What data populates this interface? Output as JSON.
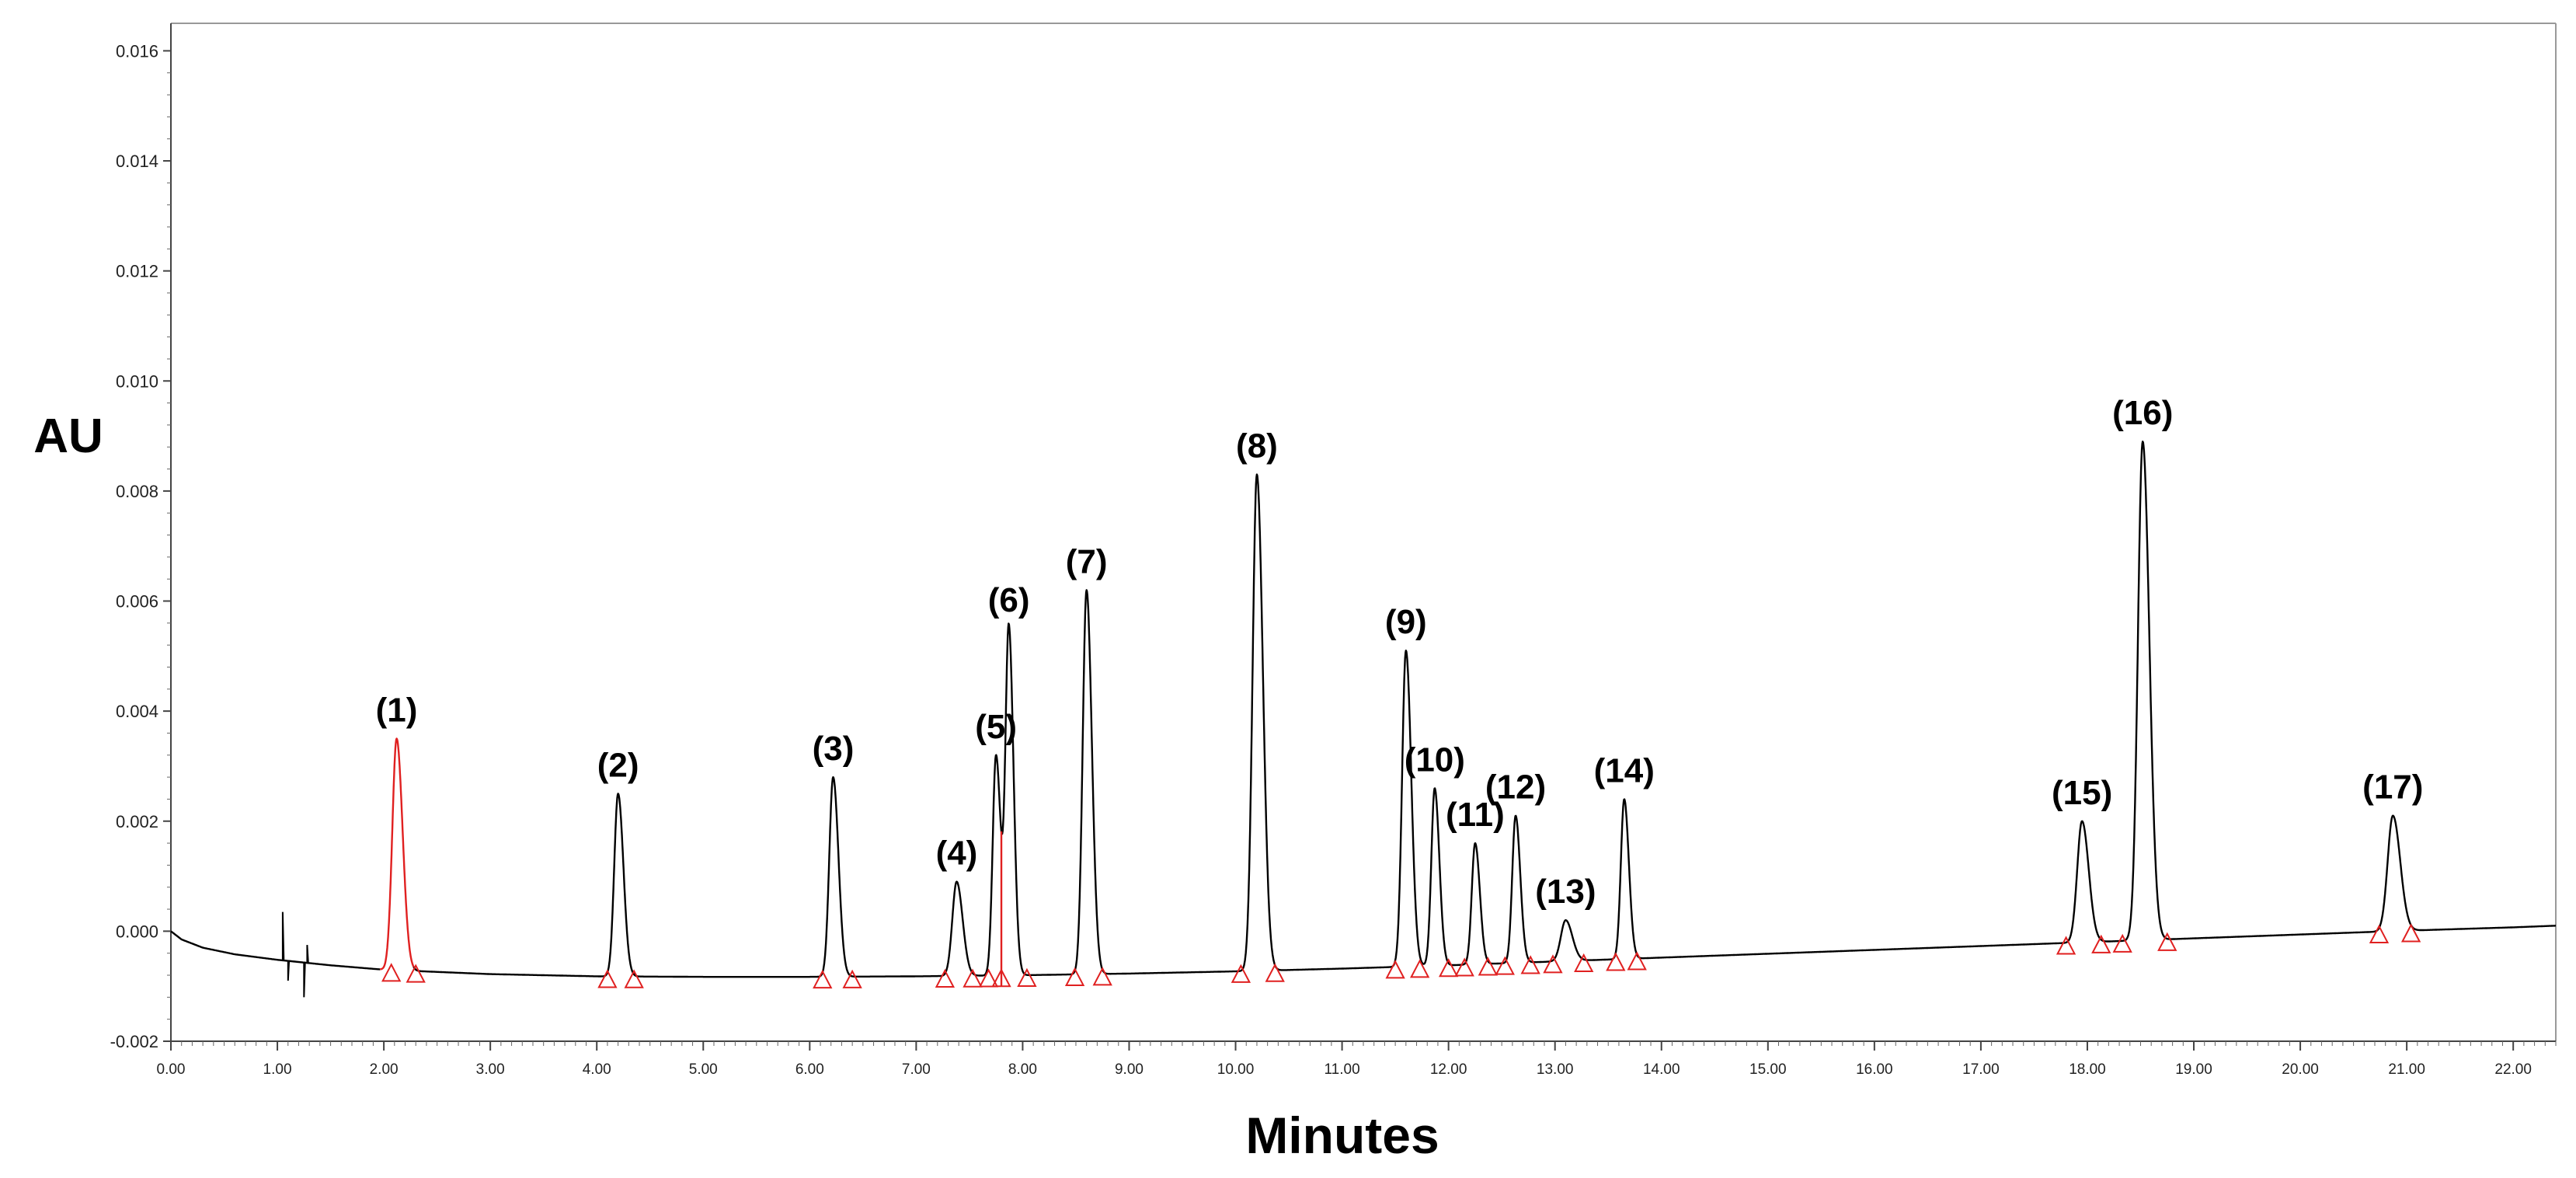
{
  "chart_data": {
    "type": "line",
    "xlabel": "Minutes",
    "ylabel": "AU",
    "xlim": [
      0,
      22.4
    ],
    "ylim": [
      -0.002,
      0.0165
    ],
    "x_ticks": [
      "0.00",
      "1.00",
      "2.00",
      "3.00",
      "4.00",
      "5.00",
      "6.00",
      "7.00",
      "8.00",
      "9.00",
      "10.00",
      "11.00",
      "12.00",
      "13.00",
      "14.00",
      "15.00",
      "16.00",
      "17.00",
      "18.00",
      "19.00",
      "20.00",
      "21.00",
      "22.00"
    ],
    "y_ticks": [
      "-0.002",
      "0.000",
      "0.002",
      "0.004",
      "0.006",
      "0.008",
      "0.010",
      "0.012",
      "0.014",
      "0.016"
    ],
    "grid": false,
    "series_color": "#000000",
    "highlight_color": "#e02020",
    "marker_color": "#e02020",
    "baseline": {
      "x": [
        0.0,
        0.1,
        0.3,
        0.6,
        1.0,
        1.5,
        2.0,
        3.0,
        4.0,
        5.0,
        6.0,
        7.0,
        8.0,
        9.0,
        10.0,
        11.0,
        12.0,
        13.0,
        14.0,
        15.0,
        16.0,
        17.0,
        18.0,
        19.0,
        20.0,
        21.0,
        22.0,
        22.4
      ],
      "y": [
        0.0,
        -0.00015,
        -0.0003,
        -0.00042,
        -0.00052,
        -0.00062,
        -0.0007,
        -0.00078,
        -0.00082,
        -0.00083,
        -0.00083,
        -0.00082,
        -0.0008,
        -0.00077,
        -0.00073,
        -0.00068,
        -0.00062,
        -0.00055,
        -0.00048,
        -0.00041,
        -0.00034,
        -0.00027,
        -0.0002,
        -0.00013,
        -6e-05,
        1e-05,
        7e-05,
        0.0001
      ]
    },
    "noise": [
      {
        "x": 1.05,
        "y": 0.00035
      },
      {
        "x": 1.1,
        "y": -0.0009
      },
      {
        "x": 1.25,
        "y": -0.0012
      },
      {
        "x": 1.28,
        "y": -0.00025
      }
    ],
    "peaks": [
      {
        "label": "(1)",
        "rt": 2.12,
        "apex": 0.0035,
        "width": 0.045,
        "highlight": true,
        "markers": [
          2.07,
          2.3
        ]
      },
      {
        "label": "(2)",
        "rt": 4.2,
        "apex": 0.0025,
        "width": 0.04,
        "highlight": false,
        "markers": [
          4.1,
          4.35
        ]
      },
      {
        "label": "(3)",
        "rt": 6.22,
        "apex": 0.0028,
        "width": 0.04,
        "highlight": false,
        "markers": [
          6.12,
          6.4
        ]
      },
      {
        "label": "(4)",
        "rt": 7.38,
        "apex": 0.0009,
        "width": 0.045,
        "highlight": false,
        "markers": [
          7.27
        ]
      },
      {
        "label": "(5)",
        "rt": 7.75,
        "apex": 0.0032,
        "width": 0.035,
        "highlight": false,
        "markers": [
          7.53,
          7.68
        ]
      },
      {
        "label": "(6)",
        "rt": 7.87,
        "apex": 0.0055,
        "width": 0.035,
        "highlight": false,
        "markers": [
          7.8,
          8.04
        ],
        "cut_at": 7.8
      },
      {
        "label": "(7)",
        "rt": 8.6,
        "apex": 0.0062,
        "width": 0.04,
        "highlight": false,
        "markers": [
          8.49,
          8.75
        ]
      },
      {
        "label": "(8)",
        "rt": 10.2,
        "apex": 0.0083,
        "width": 0.045,
        "highlight": false,
        "markers": [
          10.05,
          10.37
        ]
      },
      {
        "label": "(9)",
        "rt": 11.6,
        "apex": 0.0051,
        "width": 0.04,
        "highlight": false,
        "markers": [
          11.5,
          11.73
        ]
      },
      {
        "label": "(10)",
        "rt": 11.87,
        "apex": 0.0026,
        "width": 0.035,
        "highlight": false,
        "markers": [
          12.0
        ]
      },
      {
        "label": "(11)",
        "rt": 12.25,
        "apex": 0.0016,
        "width": 0.035,
        "highlight": false,
        "markers": [
          12.15,
          12.37
        ]
      },
      {
        "label": "(12)",
        "rt": 12.63,
        "apex": 0.0021,
        "width": 0.035,
        "highlight": false,
        "markers": [
          12.53,
          12.77
        ]
      },
      {
        "label": "(13)",
        "rt": 13.1,
        "apex": 0.0002,
        "width": 0.05,
        "highlight": false,
        "markers": [
          12.98,
          13.27
        ]
      },
      {
        "label": "(14)",
        "rt": 13.65,
        "apex": 0.0024,
        "width": 0.035,
        "highlight": false,
        "markers": [
          13.57,
          13.77
        ]
      },
      {
        "label": "(15)",
        "rt": 17.95,
        "apex": 0.002,
        "width": 0.05,
        "highlight": false,
        "markers": [
          17.8,
          18.13
        ]
      },
      {
        "label": "(16)",
        "rt": 18.52,
        "apex": 0.0089,
        "width": 0.05,
        "highlight": false,
        "markers": [
          18.33,
          18.75
        ]
      },
      {
        "label": "(17)",
        "rt": 20.87,
        "apex": 0.0021,
        "width": 0.055,
        "highlight": false,
        "markers": [
          20.74,
          21.04
        ]
      }
    ]
  }
}
